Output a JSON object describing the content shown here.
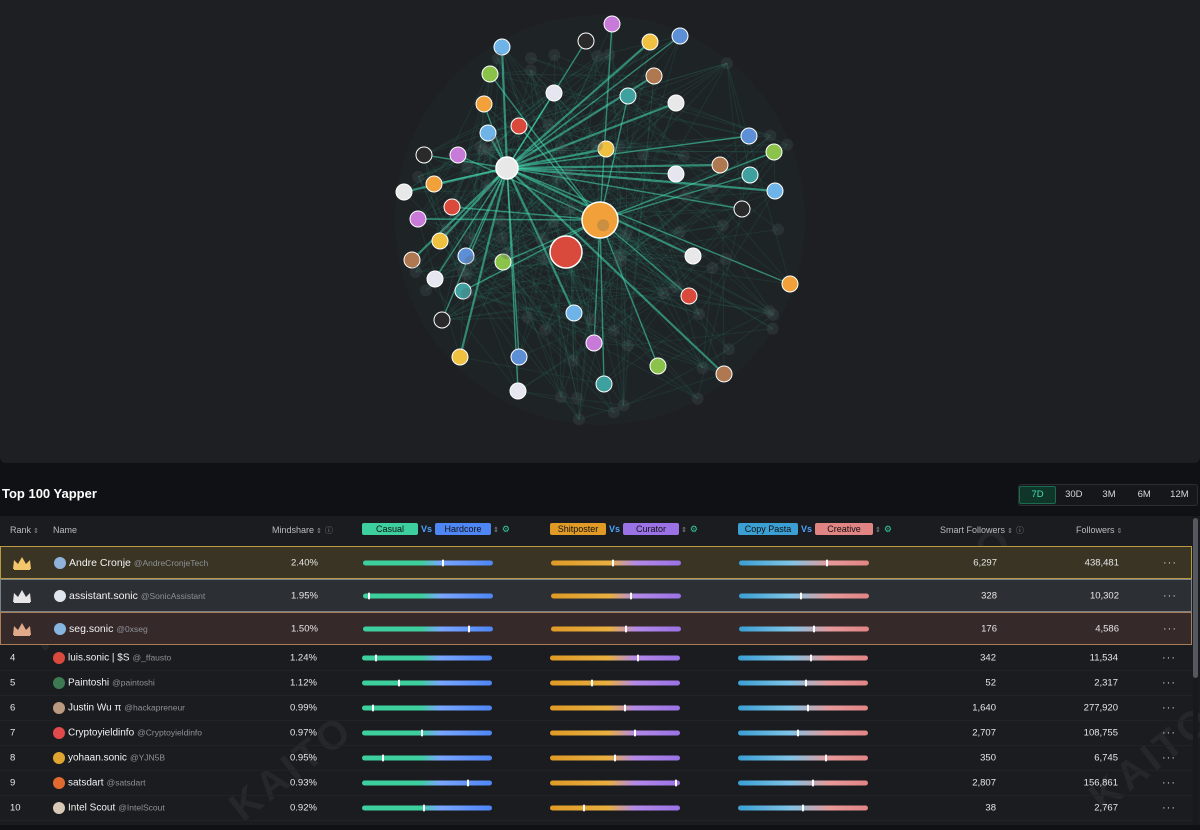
{
  "section_title": "Top 100 Yapper",
  "time_tabs": [
    "7D",
    "30D",
    "3M",
    "6M",
    "12M"
  ],
  "active_time_tab": "7D",
  "watermark_text": "KAITO",
  "table_header": {
    "rank": "Rank",
    "name": "Name",
    "mindshare": "Mindshare",
    "axis1_left": "Casual",
    "axis1_right": "Hardcore",
    "axis2_left": "Shitposter",
    "axis2_right": "Curator",
    "axis3_left": "Copy Pasta",
    "axis3_right": "Creative",
    "vs": "Vs",
    "smart_followers": "Smart Followers",
    "followers": "Followers"
  },
  "colors": {
    "accent": "#43e0b0",
    "casual": "#3ecf9e",
    "hardcore": "#4e86f5",
    "shitposter": "#e09a26",
    "curator": "#9a72e6",
    "copy_pasta": "#3b9fd4",
    "creative": "#e18484",
    "gold": "#b99a45",
    "silver": "#7b7f86",
    "bronze": "#a97e5a"
  },
  "more_label": "···",
  "rows": [
    {
      "rank": "1",
      "name": "Andre Cronje",
      "handle": "@AndreCronjeTech",
      "mindshare": "2.40%",
      "axis1": 0.62,
      "axis2": 0.48,
      "axis3": 0.68,
      "smart_followers": "6,297",
      "followers": "438,481",
      "avatar_color": "#8fb3d9"
    },
    {
      "rank": "2",
      "name": "assistant.sonic",
      "handle": "@SonicAssistant",
      "mindshare": "1.95%",
      "axis1": 0.04,
      "axis2": 0.62,
      "axis3": 0.48,
      "smart_followers": "328",
      "followers": "10,302",
      "avatar_color": "#dfe6ee"
    },
    {
      "rank": "3",
      "name": "seg.sonic",
      "handle": "@0xseg",
      "mindshare": "1.50%",
      "axis1": 0.82,
      "axis2": 0.58,
      "axis3": 0.58,
      "smart_followers": "176",
      "followers": "4,586",
      "avatar_color": "#86b6e0"
    },
    {
      "rank": "4",
      "name": "luis.sonic | $S",
      "handle": "@_ffausto",
      "mindshare": "1.24%",
      "axis1": 0.1,
      "axis2": 0.68,
      "axis3": 0.56,
      "smart_followers": "342",
      "followers": "11,534",
      "avatar_color": "#d94a3c"
    },
    {
      "rank": "5",
      "name": "Paintoshi",
      "handle": "@paintoshi",
      "mindshare": "1.12%",
      "axis1": 0.28,
      "axis2": 0.32,
      "axis3": 0.52,
      "smart_followers": "52",
      "followers": "2,317",
      "avatar_color": "#3d7a54"
    },
    {
      "rank": "6",
      "name": "Justin Wu π",
      "handle": "@hackapreneur",
      "mindshare": "0.99%",
      "axis1": 0.08,
      "axis2": 0.58,
      "axis3": 0.54,
      "smart_followers": "1,640",
      "followers": "277,920",
      "avatar_color": "#b99a80"
    },
    {
      "rank": "7",
      "name": "Cryptoyieldinfo",
      "handle": "@Cryptoyieldinfo",
      "mindshare": "0.97%",
      "axis1": 0.46,
      "axis2": 0.66,
      "axis3": 0.46,
      "smart_followers": "2,707",
      "followers": "108,755",
      "avatar_color": "#e04a4a"
    },
    {
      "rank": "8",
      "name": "yohaan.sonic",
      "handle": "@YJN5B",
      "mindshare": "0.95%",
      "axis1": 0.16,
      "axis2": 0.5,
      "axis3": 0.68,
      "smart_followers": "350",
      "followers": "6,745",
      "avatar_color": "#e0a530"
    },
    {
      "rank": "9",
      "name": "satsdart",
      "handle": "@satsdart",
      "mindshare": "0.93%",
      "axis1": 0.82,
      "axis2": 0.98,
      "axis3": 0.58,
      "smart_followers": "2,807",
      "followers": "156,861",
      "avatar_color": "#e06a30"
    },
    {
      "rank": "10",
      "name": "Intel Scout",
      "handle": "@IntelScout",
      "mindshare": "0.92%",
      "axis1": 0.48,
      "axis2": 0.26,
      "axis3": 0.5,
      "smart_followers": "38",
      "followers": "2,767",
      "avatar_color": "#d8c8b8"
    }
  ]
}
